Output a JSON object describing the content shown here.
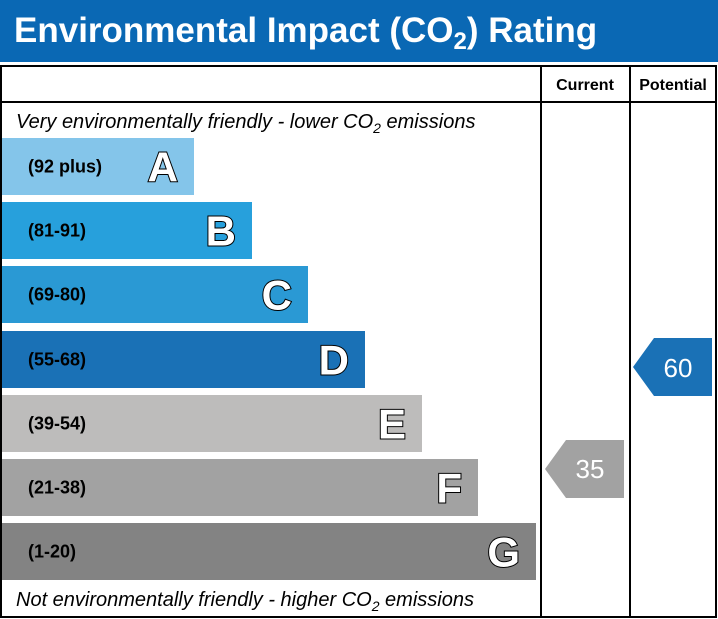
{
  "header": {
    "title": [
      "Environmental Impact (CO",
      "2",
      ") Rating"
    ]
  },
  "columns": {
    "current": "Current",
    "potential": "Potential"
  },
  "top_note": [
    "Very environmentally friendly - lower CO",
    "2",
    " emissions"
  ],
  "bottom_note": [
    "Not environmentally friendly - higher CO",
    "2",
    " emissions"
  ],
  "bands": [
    {
      "range": "(92 plus)",
      "letter": "A",
      "color": "#84c5ea"
    },
    {
      "range": "(81-91)",
      "letter": "B",
      "color": "#27a0dc"
    },
    {
      "range": "(69-80)",
      "letter": "C",
      "color": "#2a99d4"
    },
    {
      "range": "(55-68)",
      "letter": "D",
      "color": "#1a71b6"
    },
    {
      "range": "(39-54)",
      "letter": "E",
      "color": "#bdbcbb"
    },
    {
      "range": "(21-38)",
      "letter": "F",
      "color": "#a2a2a2"
    },
    {
      "range": "(1-20)",
      "letter": "G",
      "color": "#838383"
    }
  ],
  "current": {
    "value": 35,
    "color": "#a2a2a2"
  },
  "potential": {
    "value": 60,
    "color": "#1a71b6"
  }
}
